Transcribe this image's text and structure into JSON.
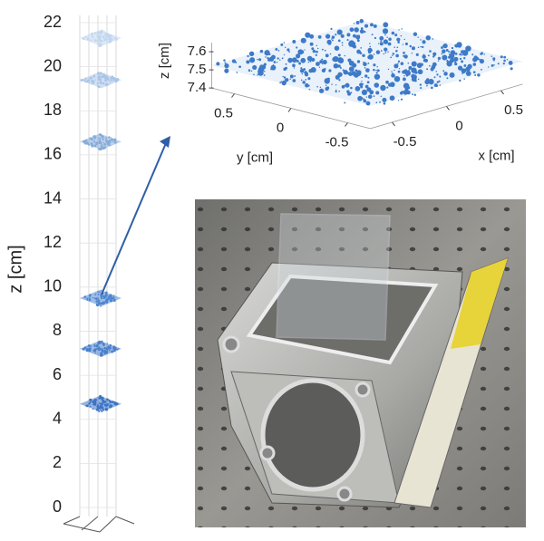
{
  "chart_data": [
    {
      "type": "layers",
      "ylabel": "z [cm]",
      "ylim": [
        0,
        22
      ],
      "yticks": [
        0,
        2,
        4,
        6,
        8,
        10,
        12,
        14,
        16,
        18,
        20,
        22
      ],
      "values": [
        4.7,
        7.2,
        9.5,
        16.6,
        19.4,
        21.3
      ],
      "colors": [
        "#3d74c4",
        "#4a80cc",
        "#4f86d0",
        "#86acd9",
        "#a9c5e6",
        "#c2d7ee"
      ]
    },
    {
      "type": "scatter3d",
      "zlabel": "z [cm]",
      "ylabel": "y [cm]",
      "xlabel": "x [cm]",
      "zlim": [
        7.4,
        7.65
      ],
      "zticks": [
        7.4,
        7.5,
        7.6
      ],
      "xlim": [
        -0.7,
        0.7
      ],
      "xticks": [
        -0.5,
        0,
        0.5
      ],
      "ylim": [
        -0.7,
        0.7
      ],
      "yticks": [
        0.5,
        0,
        -0.5
      ],
      "color": "#3d7ac8"
    }
  ]
}
